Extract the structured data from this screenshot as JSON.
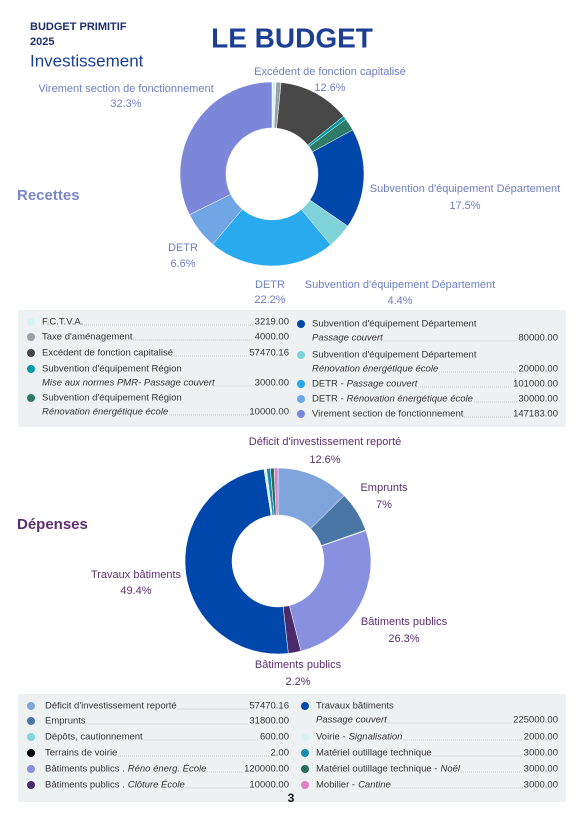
{
  "header": {
    "kicker": "BUDGET PRIMITIF",
    "year": "2025",
    "subtitle": "Investissement",
    "title": "LE BUDGET"
  },
  "page_number": "3",
  "chart_data": [
    {
      "type": "pie",
      "title": "Recettes",
      "categories": [
        "F.C.T.V.A.",
        "Taxe d'aménagement",
        "Excédent de fonction capitalisé",
        "Subvention d'équipement Région",
        "Subvention d'équipement Région",
        "Subvention d'équipement Département",
        "Subvention d'équipement Département",
        "DETR -",
        "DETR -",
        "Virement section de fonctionnement"
      ],
      "details": [
        null,
        null,
        null,
        "Mise aux normes PMR- Passage couvert",
        "Rénovation énergétique école",
        "Passage couvert",
        "Rénovation énergétique école",
        "Passage couvert",
        "Rénovation énergétique école",
        null
      ],
      "values": [
        3219,
        4000,
        57470.16,
        3000,
        10000,
        80000,
        20000,
        101000,
        30000,
        147183
      ],
      "value_labels": [
        "3219.00",
        "4000.00",
        "57470.16",
        "3000.00",
        "10000.00",
        "80000.00",
        "20000.00",
        "101000.00",
        "30000.00",
        "147183.00"
      ],
      "colors": [
        "#d6f3f4",
        "#9aa1a6",
        "#474747",
        "#0097a7",
        "#2e7b68",
        "#0047ab",
        "#80d2da",
        "#29a9ee",
        "#70a6e6",
        "#7c87da"
      ],
      "slice_labels": [
        null,
        null,
        {
          "name": "Excédent de fonction capitalisé",
          "pct": "12.6%"
        },
        null,
        null,
        {
          "name": "Subvention d'équipement Département",
          "pct": "17.5%"
        },
        {
          "name": "Subvention d'équipement Département",
          "pct": "4.4%"
        },
        {
          "name": "DETR",
          "pct": "22.2%"
        },
        {
          "name": "DETR",
          "pct": "6.6%"
        },
        {
          "name": "Virement section de fonctionnement",
          "pct": "32.3%"
        }
      ]
    },
    {
      "type": "pie",
      "title": "Dépenses",
      "categories": [
        "Déficit d'investissement reporté",
        "Emprunts",
        "Dépôts, cautionnement",
        "Terrains de voirie",
        "Bâtiments publics .",
        "Bâtiments publics .",
        "Travaux bâtiments",
        "Voirie -",
        "Matériel outillage technique",
        "Matériel outillage technique -",
        "Mobilier -"
      ],
      "details": [
        null,
        null,
        null,
        null,
        "Réno énerg. École",
        "Clôture École",
        "Passage couvert",
        "Signalisation",
        null,
        "Noël",
        "Cantine"
      ],
      "values": [
        57470.16,
        31800,
        600,
        2,
        120000,
        10000,
        225000,
        2000,
        3000,
        3000,
        3000
      ],
      "value_labels": [
        "57470.16",
        "31800.00",
        "600.00",
        "2.00",
        "120000.00",
        "10000.00",
        "225000.00",
        "2000.00",
        "3000.00",
        "3000.00",
        "3000.00"
      ],
      "colors": [
        "#7fa5dc",
        "#4a76a6",
        "#7fd4de",
        "#000000",
        "#8890e0",
        "#4b2a6b",
        "#0047ab",
        "#d6f3f4",
        "#1a89b0",
        "#2a6d5f",
        "#e07fc0"
      ],
      "slice_labels": [
        {
          "name": "Déficit d'investissement reporté",
          "pct": "12.6%"
        },
        {
          "name": "Emprunts",
          "pct": "7%"
        },
        null,
        null,
        {
          "name": "Bâtiments publics",
          "pct": "26.3%"
        },
        {
          "name": "Bâtiments publics",
          "pct": "2.2%"
        },
        {
          "name": "Travaux bâtiments",
          "pct": "49.4%"
        },
        null,
        null,
        null,
        null
      ]
    }
  ]
}
